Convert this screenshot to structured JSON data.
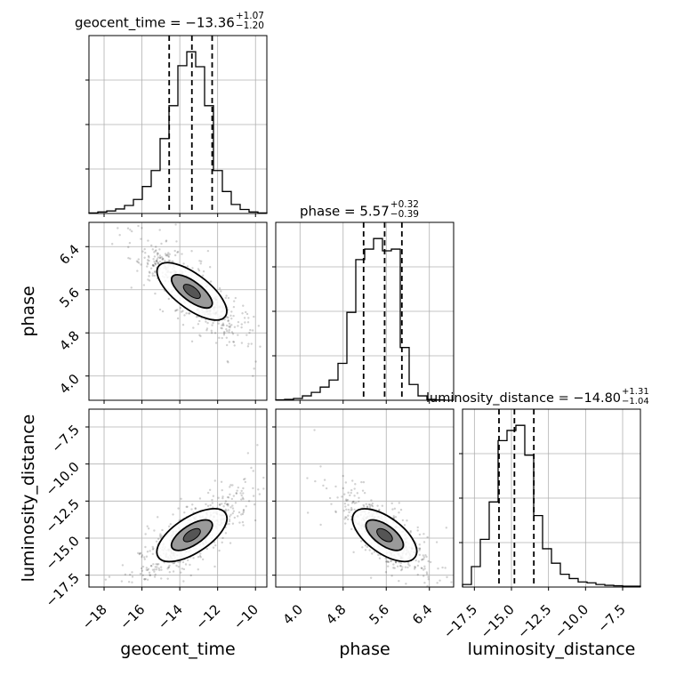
{
  "chart_data": {
    "type": "corner",
    "parameters": [
      "geocent_time",
      "phase",
      "luminosity_distance"
    ],
    "titles": [
      {
        "name": "geocent_time",
        "median": "−13.36",
        "plus": "+1.07",
        "minus": "−1.20"
      },
      {
        "name": "phase",
        "median": "5.57",
        "plus": "+0.32",
        "minus": "−0.39"
      },
      {
        "name": "luminosity_distance",
        "median": "−14.80",
        "plus": "+1.31",
        "minus": "−1.04"
      }
    ],
    "axis_labels": [
      "geocent_time",
      "phase",
      "luminosity_distance"
    ],
    "ranges": {
      "geocent_time": [
        -18.8,
        -9.4
      ],
      "phase": [
        3.55,
        6.85
      ],
      "luminosity_distance": [
        -18.3,
        -6.3
      ]
    },
    "ticks": {
      "geocent_time": {
        "values": [
          -18,
          -16,
          -14,
          -12,
          -10
        ],
        "labels": [
          "−18",
          "−16",
          "−14",
          "−12",
          "−10"
        ]
      },
      "phase": {
        "values": [
          4.0,
          4.8,
          5.6,
          6.4
        ],
        "labels": [
          "4.0",
          "4.8",
          "5.6",
          "6.4"
        ]
      },
      "luminosity_distance": {
        "values": [
          -17.5,
          -15.0,
          -12.5,
          -10.0,
          -7.5
        ],
        "labels": [
          "−17.5",
          "−15.0",
          "−12.5",
          "−10.0",
          "−7.5"
        ]
      }
    },
    "quantiles": {
      "geocent_time": [
        -14.56,
        -13.36,
        -12.29
      ],
      "phase": [
        5.18,
        5.57,
        5.89
      ],
      "luminosity_distance": [
        -15.84,
        -14.8,
        -13.49
      ]
    },
    "histograms": {
      "geocent_time": {
        "edges": [
          -18.8,
          -18.33,
          -17.86,
          -17.39,
          -16.92,
          -16.45,
          -15.98,
          -15.51,
          -15.04,
          -14.57,
          -14.1,
          -13.63,
          -13.16,
          -12.69,
          -12.22,
          -11.75,
          -11.28,
          -10.81,
          -10.34,
          -9.87,
          -9.4
        ],
        "counts": [
          0.5,
          1.5,
          2.5,
          4.5,
          8,
          14,
          27,
          43,
          75,
          108,
          148,
          162,
          147,
          108,
          43,
          22,
          9,
          4,
          1.5,
          0.5
        ]
      },
      "phase": {
        "edges": [
          3.55,
          3.715,
          3.88,
          4.045,
          4.21,
          4.375,
          4.54,
          4.705,
          4.87,
          5.035,
          5.2,
          5.365,
          5.53,
          5.695,
          5.86,
          6.025,
          6.19,
          6.355,
          6.52,
          6.685,
          6.85
        ],
        "counts": [
          0.5,
          1,
          2,
          5,
          9,
          15,
          23,
          42,
          100,
          160,
          172,
          184,
          170,
          172,
          60,
          18,
          5,
          1,
          0.5,
          0
        ]
      },
      "luminosity_distance": {
        "edges": [
          -18.3,
          -17.7,
          -17.1,
          -16.5,
          -15.9,
          -15.3,
          -14.7,
          -14.1,
          -13.5,
          -12.9,
          -12.3,
          -11.7,
          -11.1,
          -10.5,
          -9.9,
          -9.3,
          -8.7,
          -8.1,
          -7.5,
          -6.9,
          -6.3
        ],
        "counts": [
          3,
          24,
          56,
          100,
          172,
          184,
          190,
          155,
          84,
          45,
          28,
          15,
          10,
          6,
          5,
          3,
          2,
          1.5,
          1,
          1
        ]
      }
    },
    "correlations": {
      "phase_vs_geocent_time": -0.85,
      "luminosity_distance_vs_geocent_time": 0.8,
      "luminosity_distance_vs_phase": -0.8
    },
    "credible_contour_levels": [
      0.39,
      0.86
    ],
    "grid": true
  }
}
